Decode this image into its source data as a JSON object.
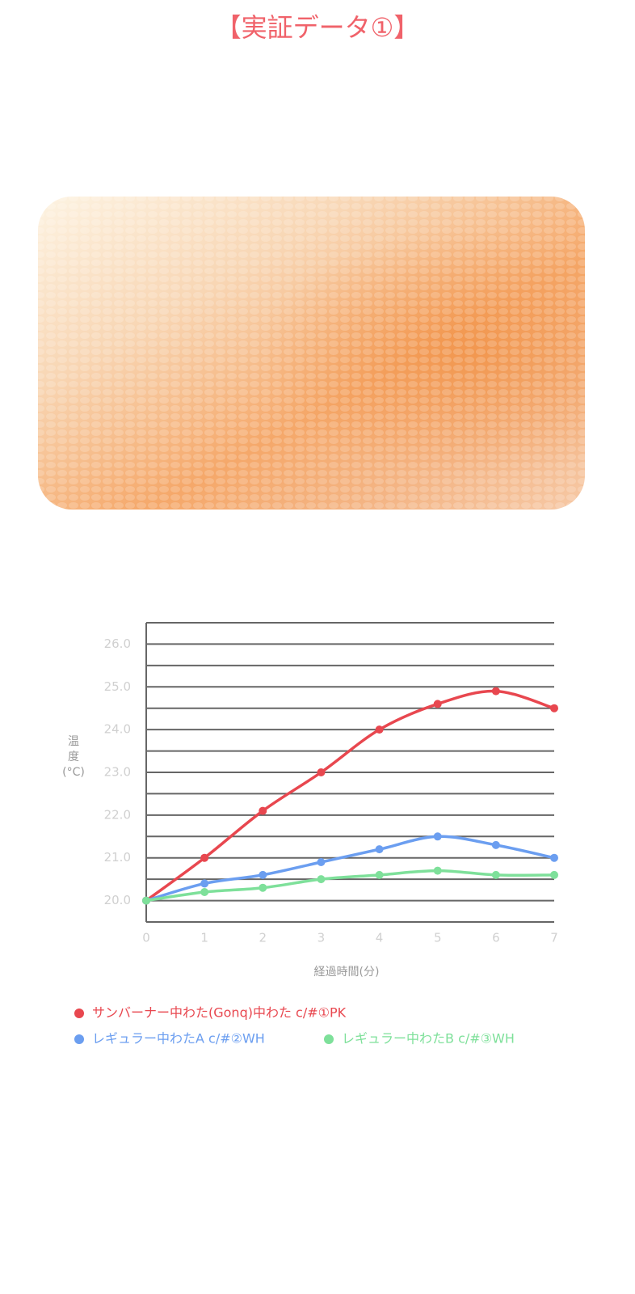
{
  "chart_data": {
    "type": "line",
    "title": "【実証データ①】",
    "xlabel": "経過時間(分)",
    "ylabel_lines": [
      "温",
      "度",
      "(°C)"
    ],
    "x": [
      0,
      1,
      2,
      3,
      4,
      5,
      6,
      7
    ],
    "xlim": [
      0,
      7
    ],
    "xticks": [
      0,
      1,
      2,
      3,
      4,
      5,
      6,
      7
    ],
    "ylim": [
      19.5,
      26.5
    ],
    "yticks": [
      {
        "value": 20,
        "label": "20.0"
      },
      {
        "value": 21,
        "label": "21.0"
      },
      {
        "value": 22,
        "label": "22.0"
      },
      {
        "value": 23,
        "label": "23.0"
      },
      {
        "value": 24,
        "label": "24.0"
      },
      {
        "value": 25,
        "label": "25.0"
      },
      {
        "value": 26,
        "label": "26.0"
      }
    ],
    "ygrid": [
      19.5,
      20,
      20.5,
      21,
      21.5,
      22,
      22.5,
      23,
      23.5,
      24,
      24.5,
      25,
      25.5,
      26,
      26.5
    ],
    "grid": true,
    "smooth": true,
    "series": [
      {
        "name": "サンバーナー中わた(Gonq)中わた c/#①PK",
        "color": "#e8474f",
        "values": [
          20.0,
          21.0,
          22.1,
          23.0,
          24.0,
          24.6,
          24.9,
          24.5
        ]
      },
      {
        "name": "レギュラー中わたA c/#②WH",
        "color": "#6b9ef0",
        "values": [
          20.0,
          20.4,
          20.6,
          20.9,
          21.2,
          21.5,
          21.3,
          21.0
        ]
      },
      {
        "name": "レギュラー中わたB c/#③WH",
        "color": "#7ee09a",
        "values": [
          20.0,
          20.2,
          20.3,
          20.5,
          20.6,
          20.7,
          20.6,
          20.6
        ]
      }
    ]
  }
}
